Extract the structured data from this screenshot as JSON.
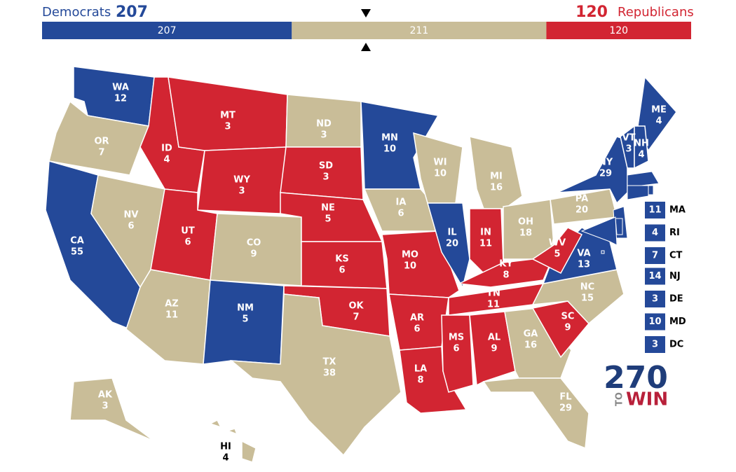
{
  "header": {
    "dem_label": "Democrats",
    "dem_total": 207,
    "rep_total": 120,
    "rep_label": "Republicans"
  },
  "bar": {
    "segments": [
      {
        "value": 207,
        "party": "D"
      },
      {
        "value": 211,
        "party": "T"
      },
      {
        "value": 120,
        "party": "R"
      }
    ]
  },
  "party_colors": {
    "D": "#244999",
    "R": "#d22532",
    "T": "#c9bd98"
  },
  "states": [
    {
      "abbr": "WA",
      "ev": 12,
      "party": "D"
    },
    {
      "abbr": "OR",
      "ev": 7,
      "party": "T"
    },
    {
      "abbr": "CA",
      "ev": 55,
      "party": "D"
    },
    {
      "abbr": "NV",
      "ev": 6,
      "party": "T"
    },
    {
      "abbr": "ID",
      "ev": 4,
      "party": "R"
    },
    {
      "abbr": "MT",
      "ev": 3,
      "party": "R"
    },
    {
      "abbr": "WY",
      "ev": 3,
      "party": "R"
    },
    {
      "abbr": "UT",
      "ev": 6,
      "party": "R"
    },
    {
      "abbr": "AZ",
      "ev": 11,
      "party": "T"
    },
    {
      "abbr": "CO",
      "ev": 9,
      "party": "T"
    },
    {
      "abbr": "NM",
      "ev": 5,
      "party": "D"
    },
    {
      "abbr": "ND",
      "ev": 3,
      "party": "T"
    },
    {
      "abbr": "SD",
      "ev": 3,
      "party": "R"
    },
    {
      "abbr": "NE",
      "ev": 5,
      "party": "R"
    },
    {
      "abbr": "KS",
      "ev": 6,
      "party": "R"
    },
    {
      "abbr": "OK",
      "ev": 7,
      "party": "R"
    },
    {
      "abbr": "TX",
      "ev": 38,
      "party": "T"
    },
    {
      "abbr": "MN",
      "ev": 10,
      "party": "D"
    },
    {
      "abbr": "IA",
      "ev": 6,
      "party": "T"
    },
    {
      "abbr": "MO",
      "ev": 10,
      "party": "R"
    },
    {
      "abbr": "AR",
      "ev": 6,
      "party": "R"
    },
    {
      "abbr": "LA",
      "ev": 8,
      "party": "R"
    },
    {
      "abbr": "WI",
      "ev": 10,
      "party": "T"
    },
    {
      "abbr": "IL",
      "ev": 20,
      "party": "D"
    },
    {
      "abbr": "MI",
      "ev": 16,
      "party": "T"
    },
    {
      "abbr": "IN",
      "ev": 11,
      "party": "R"
    },
    {
      "abbr": "OH",
      "ev": 18,
      "party": "T"
    },
    {
      "abbr": "KY",
      "ev": 8,
      "party": "R"
    },
    {
      "abbr": "TN",
      "ev": 11,
      "party": "R"
    },
    {
      "abbr": "MS",
      "ev": 6,
      "party": "R"
    },
    {
      "abbr": "AL",
      "ev": 9,
      "party": "R"
    },
    {
      "abbr": "GA",
      "ev": 16,
      "party": "T"
    },
    {
      "abbr": "FL",
      "ev": 29,
      "party": "T"
    },
    {
      "abbr": "SC",
      "ev": 9,
      "party": "R"
    },
    {
      "abbr": "NC",
      "ev": 15,
      "party": "T"
    },
    {
      "abbr": "VA",
      "ev": 13,
      "party": "D"
    },
    {
      "abbr": "WV",
      "ev": 5,
      "party": "R"
    },
    {
      "abbr": "PA",
      "ev": 20,
      "party": "T"
    },
    {
      "abbr": "NY",
      "ev": 29,
      "party": "D"
    },
    {
      "abbr": "ME",
      "ev": 4,
      "party": "D"
    },
    {
      "abbr": "VT",
      "ev": 3,
      "party": "D"
    },
    {
      "abbr": "NH",
      "ev": 4,
      "party": "D"
    },
    {
      "abbr": "AK",
      "ev": 3,
      "party": "T"
    },
    {
      "abbr": "HI",
      "ev": 4,
      "party": "T"
    }
  ],
  "small_states": [
    {
      "abbr": "MA",
      "ev": 11,
      "party": "D"
    },
    {
      "abbr": "RI",
      "ev": 4,
      "party": "D"
    },
    {
      "abbr": "CT",
      "ev": 7,
      "party": "D"
    },
    {
      "abbr": "NJ",
      "ev": 14,
      "party": "D"
    },
    {
      "abbr": "DE",
      "ev": 3,
      "party": "D"
    },
    {
      "abbr": "MD",
      "ev": 10,
      "party": "D"
    },
    {
      "abbr": "DC",
      "ev": 3,
      "party": "D"
    }
  ],
  "logo": {
    "number": "270",
    "to": "TO",
    "win": "WIN"
  }
}
